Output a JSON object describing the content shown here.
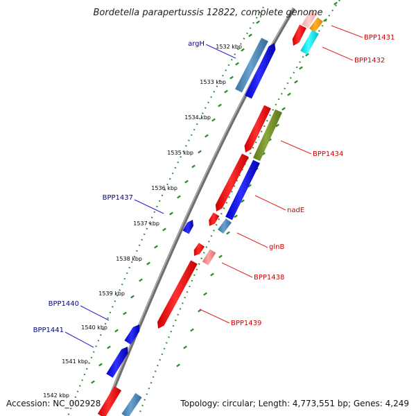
{
  "title": "Bordetella parapertussis 12822, complete genome",
  "footer": {
    "accession": "Accession: NC_002928",
    "summary": "Topology: circular; Length: 4,773,551 bp; Genes: 4,249"
  },
  "colors": {
    "backbone": "#8a8a8a",
    "tick": "#2e8b2e",
    "forward_label": "#00008b",
    "reverse_label": "#cc0000"
  },
  "ticks": [
    {
      "label": "1532 kbp"
    },
    {
      "label": "1533 kbp"
    },
    {
      "label": "1534 kbp"
    },
    {
      "label": "1535 kbp"
    },
    {
      "label": "1536 kbp"
    },
    {
      "label": "1537 kbp"
    },
    {
      "label": "1538 kbp"
    },
    {
      "label": "1539 kbp"
    },
    {
      "label": "1540 kbp"
    },
    {
      "label": "1541 kbp"
    },
    {
      "label": "1542 kbp"
    }
  ],
  "gene_labels": [
    {
      "text": "argH",
      "strand": "forward"
    },
    {
      "text": "BPP1437",
      "strand": "forward"
    },
    {
      "text": "BPP1440",
      "strand": "forward"
    },
    {
      "text": "BPP1441",
      "strand": "forward"
    },
    {
      "text": "BPP1431",
      "strand": "reverse"
    },
    {
      "text": "BPP1432",
      "strand": "reverse"
    },
    {
      "text": "BPP1434",
      "strand": "reverse"
    },
    {
      "text": "nadE",
      "strand": "reverse"
    },
    {
      "text": "glnB",
      "strand": "reverse"
    },
    {
      "text": "BPP1438",
      "strand": "reverse"
    },
    {
      "text": "BPP1439",
      "strand": "reverse"
    }
  ],
  "features": [
    {
      "name": "argH",
      "strand": "forward",
      "color": "#1010e0"
    },
    {
      "name": "BPP1437",
      "strand": "forward",
      "color": "#1010e0"
    },
    {
      "name": "BPP1440",
      "strand": "forward",
      "color": "#1010e0"
    },
    {
      "name": "BPP1441",
      "strand": "forward",
      "color": "#1010e0"
    },
    {
      "name": "BPP1431",
      "strand": "reverse",
      "color": "#e01010"
    },
    {
      "name": "BPP1434",
      "strand": "reverse",
      "color": "#e01010"
    },
    {
      "name": "nadE",
      "strand": "reverse",
      "color": "#e01010"
    },
    {
      "name": "glnB",
      "strand": "reverse",
      "color": "#e01010"
    },
    {
      "name": "BPP1439",
      "strand": "reverse",
      "color": "#e01010"
    }
  ]
}
